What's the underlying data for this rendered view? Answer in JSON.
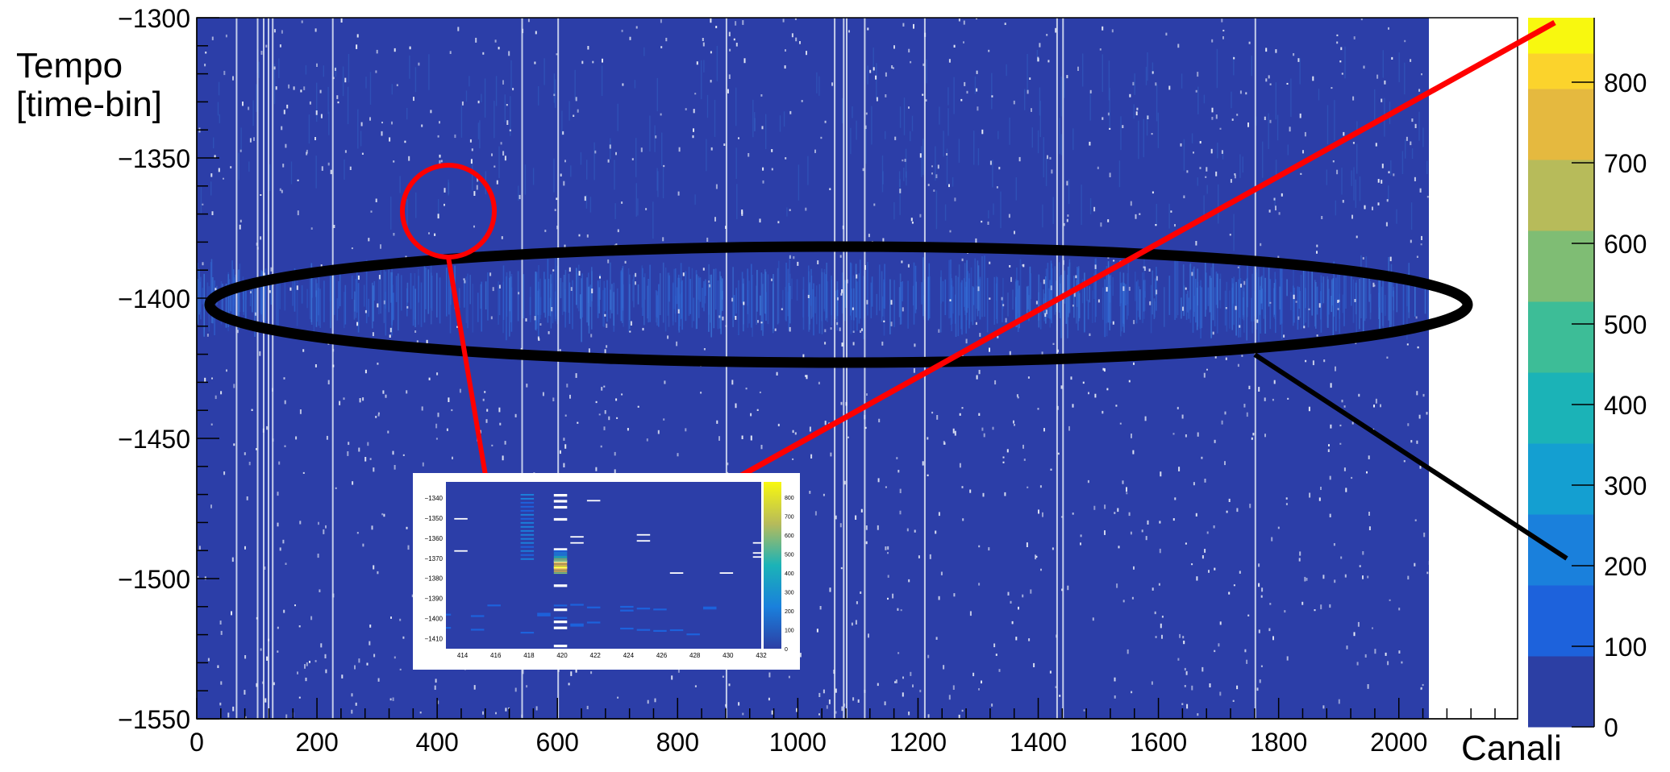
{
  "chart_data": {
    "type": "heatmap",
    "title": "",
    "ylabel": "Tempo [time-bin]",
    "xlabel": "Canali",
    "xlim": [
      0,
      2050
    ],
    "ylim": [
      -1550,
      -1300
    ],
    "x_ticks": [
      0,
      200,
      400,
      600,
      800,
      1000,
      1200,
      1400,
      1600,
      1800,
      2000
    ],
    "y_ticks": [
      -1300,
      -1350,
      -1400,
      -1450,
      -1500,
      -1550
    ],
    "colorbar": {
      "range": [
        0,
        880
      ],
      "ticks": [
        0,
        100,
        200,
        300,
        400,
        500,
        600,
        700,
        800
      ],
      "colors": [
        "#2c3fa4",
        "#1d62dc",
        "#1a80dc",
        "#149fd1",
        "#1bb3b7",
        "#3dbd97",
        "#7fbd74",
        "#b7bb5a",
        "#e5b93f",
        "#fbd32c",
        "#f8f80f"
      ]
    },
    "background_color": "#2c3ea8",
    "bright_channel_stripes": [
      65,
      100,
      110,
      118,
      125,
      225,
      540,
      600,
      880,
      1060,
      1075,
      1080,
      1110,
      1210,
      1430,
      1440,
      1760
    ],
    "noise_band_time": -1400,
    "annotations": {
      "ellipse_color": "#000000",
      "circle_color": "#ff0000",
      "circle_center": [
        420,
        -1370
      ]
    },
    "inset": {
      "xlim": [
        413,
        432
      ],
      "ylim": [
        -1415,
        -1332
      ],
      "x_ticks": [
        414,
        416,
        418,
        420,
        422,
        424,
        426,
        428,
        430,
        432
      ],
      "y_ticks": [
        -1340,
        -1350,
        -1360,
        -1370,
        -1380,
        -1390,
        -1400,
        -1410
      ],
      "colorbar_ticks": [
        0,
        100,
        200,
        300,
        400,
        500,
        600,
        700,
        800
      ],
      "hot_channel": 420,
      "hot_time": -1372,
      "hot_value": 880
    }
  }
}
